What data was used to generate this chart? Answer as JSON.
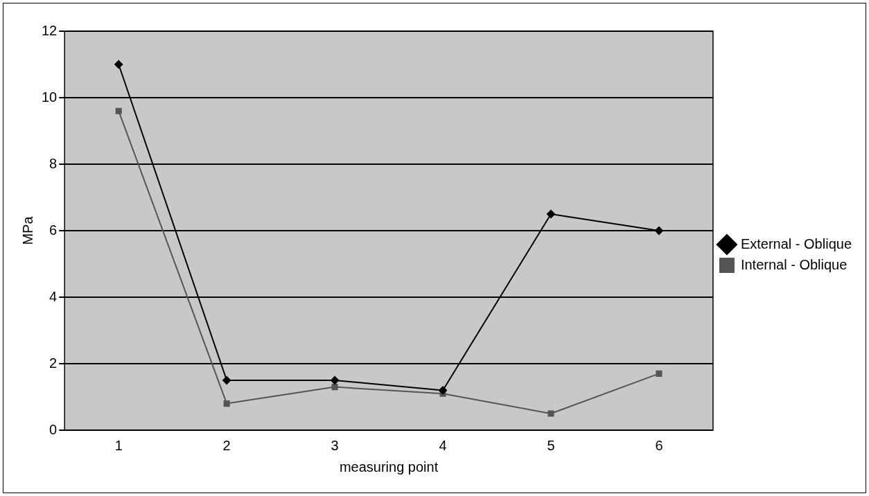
{
  "chart_data": {
    "type": "line",
    "xlabel": "measuring point",
    "ylabel": "MPa",
    "categories": [
      "1",
      "2",
      "3",
      "4",
      "5",
      "6"
    ],
    "series": [
      {
        "name": "External - Oblique",
        "color": "#000000",
        "marker": "diamond",
        "values": [
          11.0,
          1.5,
          1.5,
          1.2,
          6.5,
          6.0
        ]
      },
      {
        "name": "Internal - Oblique",
        "color": "#555555",
        "marker": "square",
        "values": [
          9.6,
          0.8,
          1.3,
          1.1,
          0.5,
          1.7
        ]
      }
    ],
    "ylim": [
      0,
      12
    ],
    "yticks": [
      0,
      2,
      4,
      6,
      8,
      10,
      12
    ],
    "grid": "y",
    "legend": "right"
  }
}
